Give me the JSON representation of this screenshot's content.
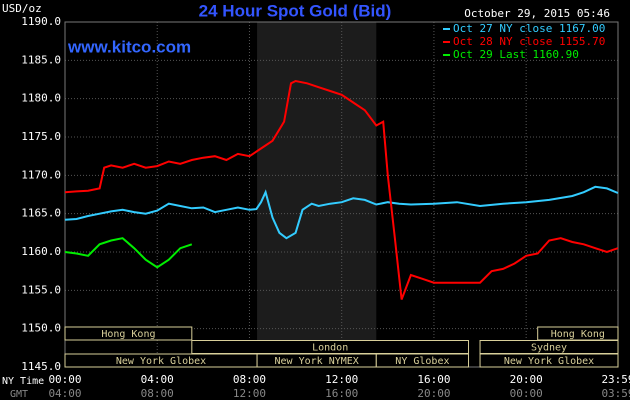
{
  "chart_data": {
    "type": "line",
    "title": "24 Hour Spot Gold (Bid)",
    "unit_label": "USD/oz",
    "timestamp": "October 29, 2015 05:46",
    "watermark": "www.kitco.com",
    "x_row_labels": [
      "NY Time",
      "GMT"
    ],
    "xlim": [
      0,
      23.983
    ],
    "xticks": [
      {
        "value": 0,
        "label": "00:00"
      },
      {
        "value": 4,
        "label": "04:00"
      },
      {
        "value": 8,
        "label": "08:00"
      },
      {
        "value": 12,
        "label": "12:00"
      },
      {
        "value": 16,
        "label": "16:00"
      },
      {
        "value": 20,
        "label": "20:00"
      },
      {
        "value": 23.983,
        "label": "23:59"
      }
    ],
    "gmt_labels": [
      "04:00",
      "08:00",
      "12:00",
      "16:00",
      "20:00",
      "00:00",
      "03:59"
    ],
    "ylim": [
      1145,
      1190
    ],
    "yticks": [
      {
        "value": 1145,
        "label": "1145.0"
      },
      {
        "value": 1150,
        "label": "1150.0"
      },
      {
        "value": 1155,
        "label": "1155.0"
      },
      {
        "value": 1160,
        "label": "1160.0"
      },
      {
        "value": 1165,
        "label": "1165.0"
      },
      {
        "value": 1170,
        "label": "1170.0"
      },
      {
        "value": 1175,
        "label": "1175.0"
      },
      {
        "value": 1180,
        "label": "1180.0"
      },
      {
        "value": 1185,
        "label": "1185.0"
      },
      {
        "value": 1190,
        "label": "1190.0"
      }
    ],
    "grid": true,
    "highlight": [
      8.33,
      13.5
    ],
    "series": [
      {
        "name": "Oct 27 NY close 1167.00",
        "color": "#33ccff",
        "x": [
          0,
          0.5,
          1,
          1.5,
          2,
          2.5,
          3,
          3.5,
          4,
          4.5,
          5,
          5.5,
          6,
          6.5,
          7,
          7.5,
          8,
          8.3,
          8.5,
          8.7,
          9,
          9.3,
          9.6,
          10,
          10.3,
          10.7,
          11,
          11.5,
          12,
          12.5,
          13,
          13.5,
          14,
          14.5,
          15,
          16,
          17,
          18,
          19,
          20,
          21,
          22,
          22.5,
          23,
          23.5,
          23.98
        ],
        "values": [
          1164.2,
          1164.3,
          1164.7,
          1165.0,
          1165.3,
          1165.5,
          1165.2,
          1165.0,
          1165.4,
          1166.3,
          1166.0,
          1165.7,
          1165.8,
          1165.2,
          1165.5,
          1165.8,
          1165.5,
          1165.6,
          1166.5,
          1167.8,
          1164.5,
          1162.5,
          1161.8,
          1162.5,
          1165.5,
          1166.3,
          1166.0,
          1166.3,
          1166.5,
          1167.0,
          1166.8,
          1166.2,
          1166.5,
          1166.3,
          1166.2,
          1166.3,
          1166.5,
          1166.0,
          1166.3,
          1166.5,
          1166.8,
          1167.3,
          1167.8,
          1168.5,
          1168.3,
          1167.7
        ]
      },
      {
        "name": "Oct 28 NY close 1155.70",
        "color": "#ff0000",
        "x": [
          0,
          0.5,
          1,
          1.5,
          1.7,
          2,
          2.5,
          3,
          3.5,
          4,
          4.5,
          5,
          5.5,
          6,
          6.5,
          7,
          7.5,
          8,
          8.5,
          9,
          9.5,
          9.8,
          10,
          10.5,
          11,
          11.5,
          12,
          12.5,
          13,
          13.5,
          13.8,
          14,
          14.3,
          14.6,
          15,
          15.5,
          16,
          17,
          18,
          18.5,
          19,
          19.5,
          20,
          20.5,
          21,
          21.5,
          22,
          22.5,
          23,
          23.5,
          23.98
        ],
        "values": [
          1167.8,
          1167.9,
          1168.0,
          1168.3,
          1171.0,
          1171.3,
          1171.0,
          1171.5,
          1171.0,
          1171.2,
          1171.8,
          1171.5,
          1172.0,
          1172.3,
          1172.5,
          1172.0,
          1172.8,
          1172.5,
          1173.5,
          1174.5,
          1177.0,
          1182.0,
          1182.3,
          1182.0,
          1181.5,
          1181.0,
          1180.5,
          1179.5,
          1178.5,
          1176.5,
          1177.0,
          1170.0,
          1162.0,
          1153.8,
          1157.0,
          1156.5,
          1156.0,
          1156.0,
          1156.0,
          1157.5,
          1157.8,
          1158.5,
          1159.5,
          1159.8,
          1161.5,
          1161.8,
          1161.3,
          1161.0,
          1160.5,
          1160.0,
          1160.5
        ]
      },
      {
        "name": "Oct 29 Last 1160.90",
        "color": "#00ee00",
        "x": [
          0,
          0.5,
          1,
          1.5,
          2,
          2.5,
          3,
          3.5,
          4,
          4.5,
          5,
          5.5
        ],
        "values": [
          1160.0,
          1159.8,
          1159.5,
          1161.0,
          1161.5,
          1161.8,
          1160.5,
          1159.0,
          1158.0,
          1159.0,
          1160.5,
          1161.0
        ]
      }
    ],
    "sessions": [
      {
        "label": "Hong Kong",
        "row": 0,
        "start": 0,
        "end": 5.5
      },
      {
        "label": "Hong Kong",
        "row": 0,
        "start": 20.5,
        "end": 23.983
      },
      {
        "label": "London",
        "row": 1,
        "start": 5.5,
        "end": 17.5
      },
      {
        "label": "Sydney",
        "row": 1,
        "start": 18,
        "end": 23.983
      },
      {
        "label": "New York Globex",
        "row": 2,
        "start": 0,
        "end": 8.33
      },
      {
        "label": "New York NYMEX",
        "row": 2,
        "start": 8.33,
        "end": 13.5
      },
      {
        "label": "NY Globex",
        "row": 2,
        "start": 13.5,
        "end": 17.5
      },
      {
        "label": "New York Globex",
        "row": 2,
        "start": 18,
        "end": 23.983
      }
    ]
  }
}
